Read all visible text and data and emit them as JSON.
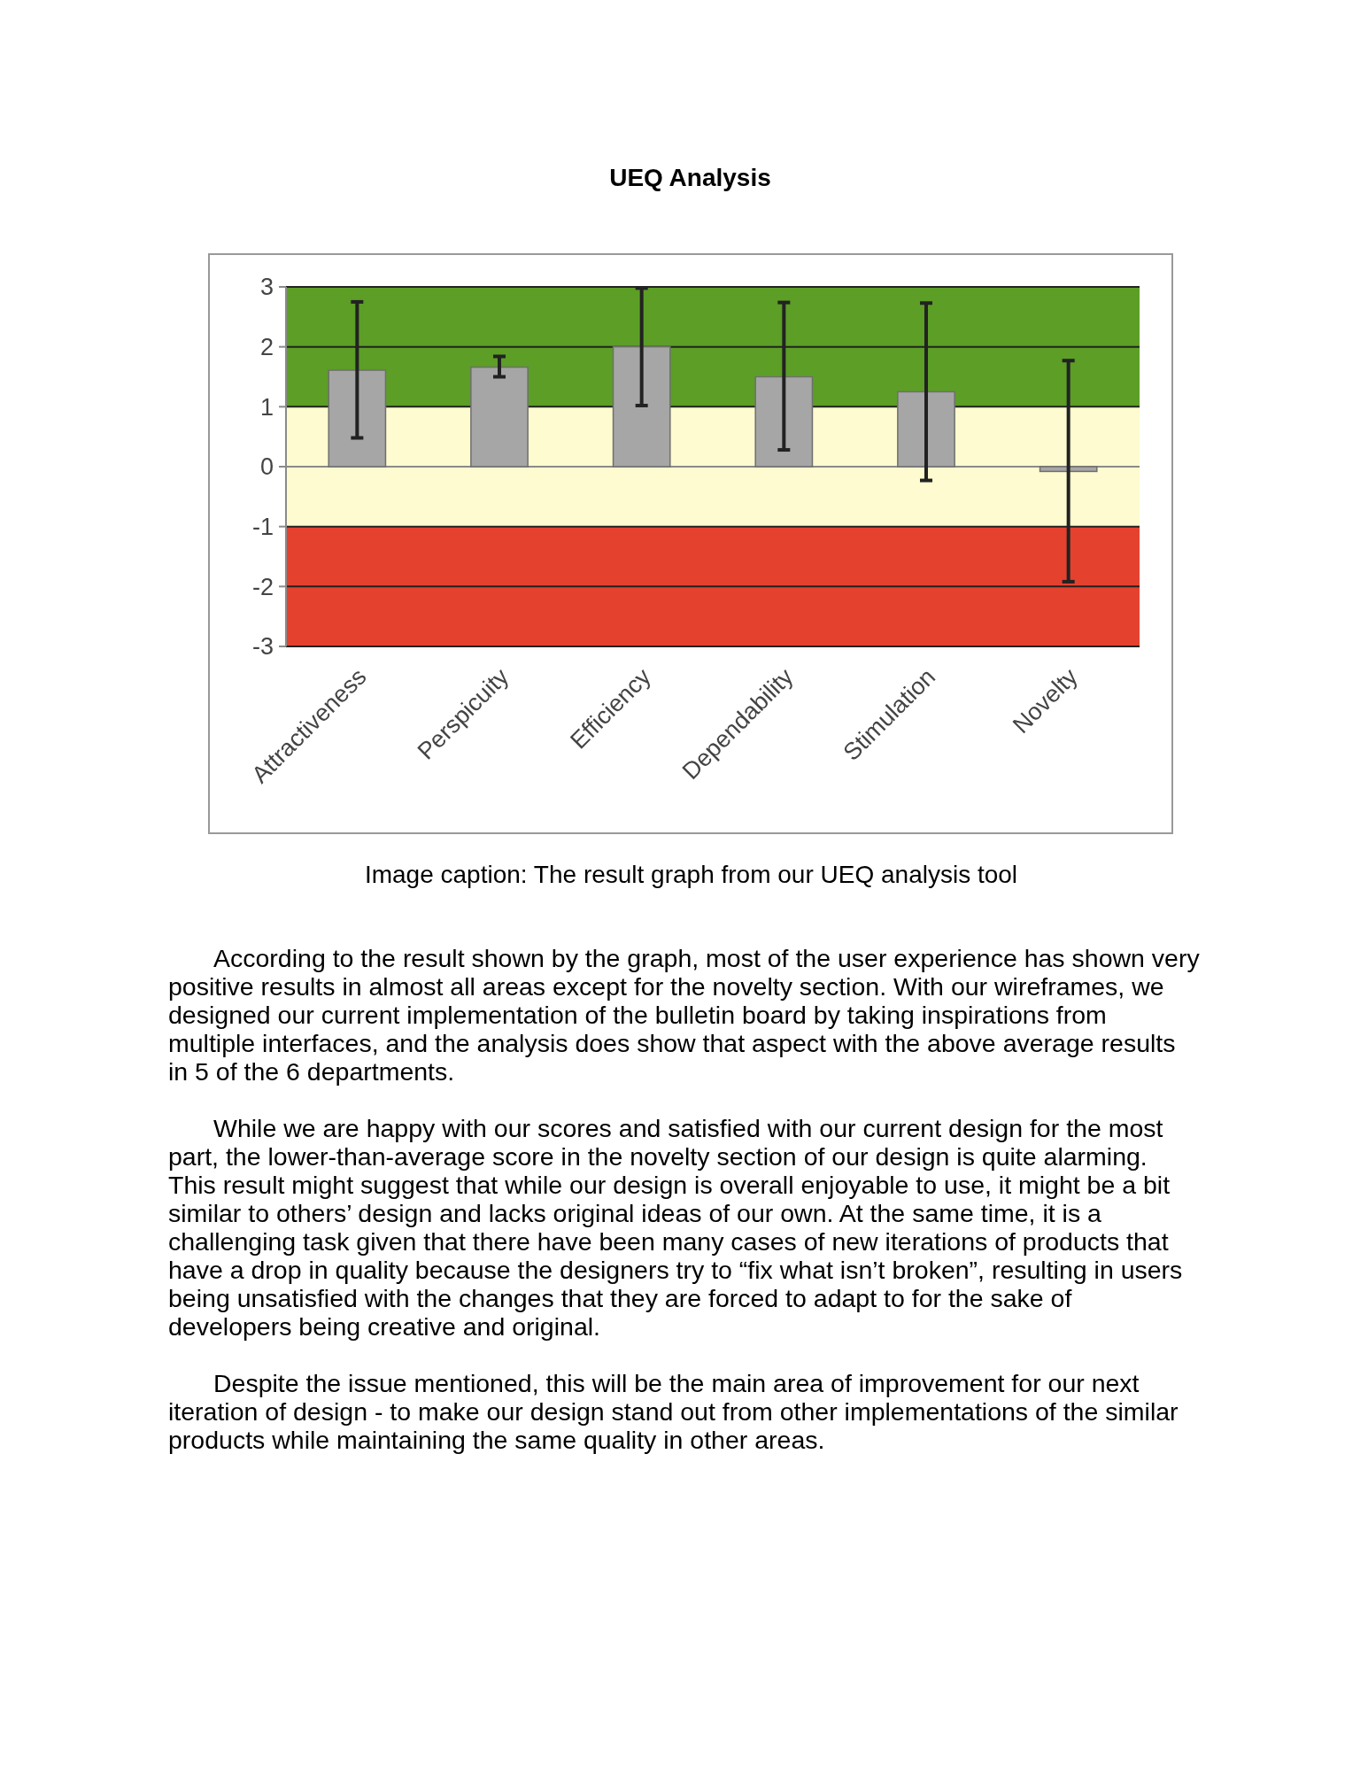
{
  "chart_data": {
    "type": "bar",
    "title": "UEQ Analysis",
    "categories": [
      "Attractiveness",
      "Perspicuity",
      "Efficiency",
      "Dependability",
      "Stimulation",
      "Novelty"
    ],
    "values": [
      1.61,
      1.66,
      2.0,
      1.5,
      1.25,
      -0.08
    ],
    "errors": [
      [
        0.48,
        2.75
      ],
      [
        1.5,
        1.84
      ],
      [
        1.02,
        2.98
      ],
      [
        0.28,
        2.74
      ],
      [
        -0.23,
        2.73
      ],
      [
        -1.92,
        1.77
      ]
    ],
    "color": "#a6a6a6",
    "ylim": [
      -3,
      3
    ],
    "yticks": [
      -3,
      -2,
      -1,
      0,
      1,
      2,
      3
    ],
    "grid": "y",
    "bands": [
      {
        "axis": "y",
        "from": 1,
        "to": 3,
        "color": "#5c9e26"
      },
      {
        "axis": "y",
        "from": -1,
        "to": 1,
        "color": "#fdfbcf"
      },
      {
        "axis": "y",
        "from": -3,
        "to": -1,
        "color": "#e5412f"
      }
    ],
    "annotations": [
      "Image caption: The result graph from our UEQ analysis tool",
      "According to the result shown by the graph, most of the user experience has shown very positive results in almost all areas except for the novelty section. With our wireframes, we designed our current implementation of the bulletin board by taking inspirations from multiple interfaces, and the analysis does show that aspect with the above average results in 5 of the 6 departments.",
      "While we are happy with our scores and satisfied with our current design for the most part, the lower-than-average score in the novelty section of our design is quite alarming. This result might suggest that while our design is overall enjoyable to use, it might be a bit similar to others’ design and lacks original ideas of our own. At the same time, it is a challenging task given that there have been many cases of new iterations of products that have a drop in quality because the designers try to “fix what isn’t broken”, resulting in users being unsatisfied with the changes that they are forced to adapt to for the sake of developers being creative and original.",
      "Despite the issue mentioned, this will be the main area of improvement for our next iteration of design - to make our design stand out from other implementations of the similar products while maintaining the same quality in other areas."
    ]
  }
}
